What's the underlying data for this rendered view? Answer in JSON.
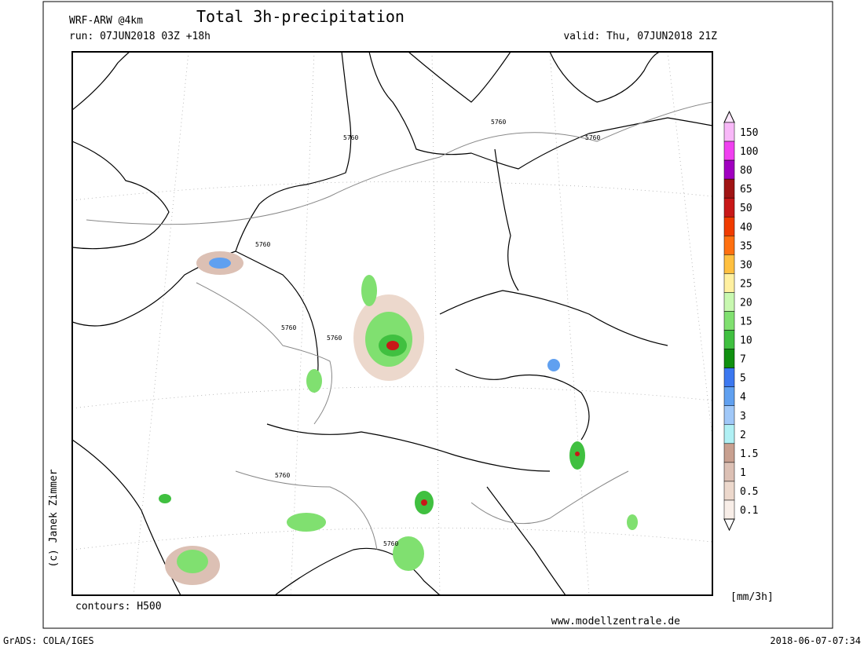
{
  "header": {
    "model": "WRF-ARW @4km",
    "title": "Total 3h-precipitation",
    "run": "run: 07JUN2018 03Z +18h",
    "valid": "valid: Thu, 07JUN2018 21Z"
  },
  "map": {
    "contours": "contours: H500",
    "contour_labels": [
      "5760",
      "5760",
      "5760",
      "5760",
      "5760",
      "5760",
      "5760",
      "5760"
    ],
    "copyright": "(c) Janek Zimmer",
    "website": "www.modellzentrale.de"
  },
  "legend": {
    "unit": "[mm/3h]",
    "levels": [
      {
        "label": "150",
        "color": "#f8b8f8"
      },
      {
        "label": "100",
        "color": "#f040f0"
      },
      {
        "label": "80",
        "color": "#a000c0"
      },
      {
        "label": "65",
        "color": "#a01414"
      },
      {
        "label": "50",
        "color": "#c81818"
      },
      {
        "label": "40",
        "color": "#f03c00"
      },
      {
        "label": "35",
        "color": "#ff7010"
      },
      {
        "label": "30",
        "color": "#ffc040"
      },
      {
        "label": "25",
        "color": "#fff0a0"
      },
      {
        "label": "20",
        "color": "#c8f8b0"
      },
      {
        "label": "15",
        "color": "#80e070"
      },
      {
        "label": "10",
        "color": "#40c040"
      },
      {
        "label": "7",
        "color": "#109010"
      },
      {
        "label": "5",
        "color": "#3c78f0"
      },
      {
        "label": "4",
        "color": "#60a0f0"
      },
      {
        "label": "3",
        "color": "#a0c8f8"
      },
      {
        "label": "2",
        "color": "#b0f0f4"
      },
      {
        "label": "1.5",
        "color": "#c8a090"
      },
      {
        "label": "1",
        "color": "#dcc0b4"
      },
      {
        "label": "0.5",
        "color": "#ecd8cc"
      },
      {
        "label": "0.1",
        "color": "#f8eee8"
      }
    ]
  },
  "footer": {
    "software": "GrADS: COLA/IGES",
    "timestamp": "2018-06-07-07:34"
  }
}
